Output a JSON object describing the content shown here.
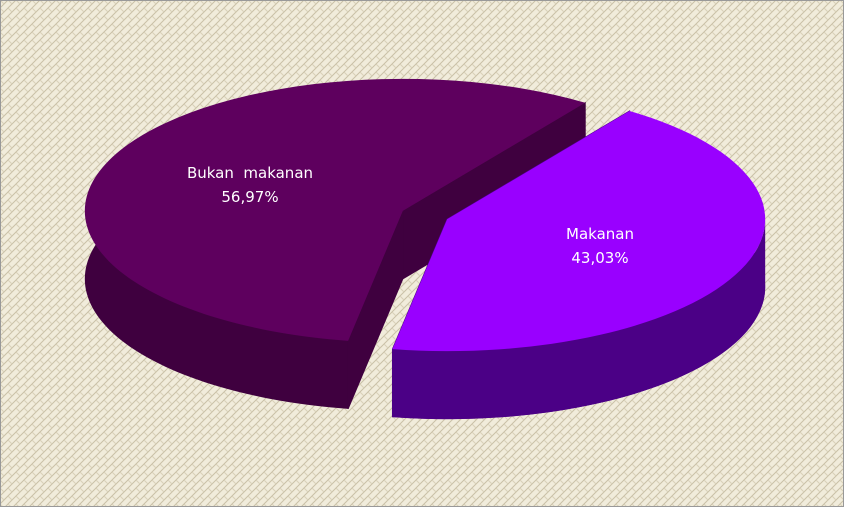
{
  "chart_data": {
    "type": "pie",
    "categories": [
      "Bukan  makanan",
      "Makanan"
    ],
    "values": [
      56.97,
      43.03
    ],
    "value_labels": [
      "56,97%",
      "43,03%"
    ],
    "colors": [
      "#5e005e",
      "#9900ff"
    ],
    "side_colors": [
      "#3f003f",
      "#4b0086"
    ]
  }
}
